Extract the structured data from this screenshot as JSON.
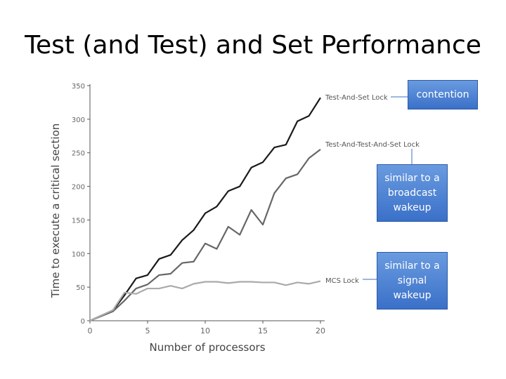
{
  "slide": {
    "title": "Test (and Test) and Set Performance"
  },
  "chart_data": {
    "type": "line",
    "xlabel": "Number of processors",
    "ylabel": "Time to execute a critical section",
    "xlim": [
      0,
      20
    ],
    "ylim": [
      0,
      350
    ],
    "x_ticks": [
      0,
      5,
      10,
      15,
      20
    ],
    "y_ticks": [
      0,
      50,
      100,
      150,
      200,
      250,
      300,
      350
    ],
    "grid": false,
    "x": [
      0,
      1,
      2,
      3,
      4,
      5,
      6,
      7,
      8,
      9,
      10,
      11,
      12,
      13,
      14,
      15,
      16,
      17,
      18,
      19,
      20
    ],
    "series": [
      {
        "name": "Test-And-Set Lock",
        "color": "#1a1a1a",
        "values": [
          0,
          8,
          15,
          38,
          63,
          68,
          92,
          98,
          120,
          135,
          160,
          170,
          193,
          200,
          228,
          236,
          258,
          262,
          297,
          305,
          332
        ]
      },
      {
        "name": "Test-And-Test-And-Set Lock",
        "color": "#666666",
        "values": [
          0,
          7,
          14,
          30,
          48,
          54,
          68,
          70,
          86,
          88,
          115,
          107,
          140,
          128,
          165,
          143,
          190,
          212,
          218,
          242,
          255
        ]
      },
      {
        "name": "MCS Lock",
        "color": "#aaaaaa",
        "values": [
          0,
          8,
          16,
          42,
          40,
          48,
          48,
          52,
          48,
          55,
          58,
          58,
          56,
          58,
          58,
          57,
          57,
          53,
          57,
          55,
          59
        ]
      }
    ],
    "callouts": [
      "contention",
      "similar to a broadcast wakeup",
      "similar to a signal wakeup"
    ]
  }
}
